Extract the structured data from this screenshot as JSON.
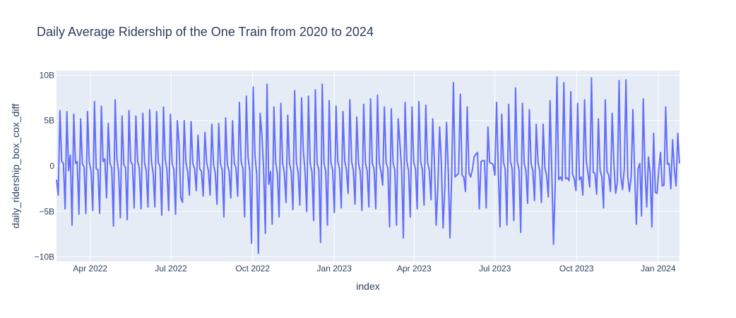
{
  "chart_data": {
    "type": "line",
    "title": "Daily Average Ridership of the One Train from 2020 to 2024",
    "xlabel": "index",
    "ylabel": "daily_ridership_box_cox_diff",
    "x_start": "2022-02-22",
    "x_end": "2024-01-25",
    "xlim": [
      "2022-02-22",
      "2024-01-25"
    ],
    "ylim": [
      -10500000000,
      10500000000
    ],
    "x_ticks": [
      {
        "label": "Apr 2022",
        "date": "2022-04-01"
      },
      {
        "label": "Jul 2022",
        "date": "2022-07-01"
      },
      {
        "label": "Oct 2022",
        "date": "2022-10-01"
      },
      {
        "label": "Jan 2023",
        "date": "2023-01-01"
      },
      {
        "label": "Apr 2023",
        "date": "2023-04-01"
      },
      {
        "label": "Jul 2023",
        "date": "2023-07-01"
      },
      {
        "label": "Oct 2023",
        "date": "2023-10-01"
      },
      {
        "label": "Jan 2024",
        "date": "2024-01-01"
      }
    ],
    "y_ticks": [
      {
        "label": "10B",
        "value": 10000000000
      },
      {
        "label": "5B",
        "value": 5000000000
      },
      {
        "label": "0",
        "value": 0
      },
      {
        "label": "−5B",
        "value": -5000000000
      },
      {
        "label": "−10B",
        "value": -10000000000
      }
    ],
    "grid": true,
    "colors": {
      "line": "#636efa",
      "plot_bg": "#e5ecf6",
      "grid": "#ffffff"
    },
    "series": [
      {
        "values": [
          -1.5,
          -3.2,
          6.1,
          0.5,
          0.3,
          -4.7,
          6.0,
          -0.5,
          1.2,
          -6.5,
          5.7,
          0.3,
          0.5,
          -5.3,
          5.2,
          0.2,
          -0.1,
          -5.2,
          6.0,
          0.4,
          -0.5,
          -4.9,
          7.1,
          -0.3,
          -0.4,
          -5.2,
          6.6,
          0.5,
          0.8,
          -3.5,
          4.7,
          0.3,
          -0.2,
          -6.6,
          7.3,
          0.8,
          -0.6,
          -5.7,
          5.5,
          0.2,
          -0.2,
          -5.9,
          6.1,
          0.5,
          0.2,
          -4.6,
          5.5,
          0.6,
          -0.3,
          -4.7,
          5.8,
          0.4,
          -0.5,
          -4.5,
          6.2,
          0.5,
          -0.8,
          -4.5,
          6.0,
          0.4,
          -0.1,
          -5.4,
          6.5,
          0.7,
          -0.4,
          -4.9,
          5.7,
          0.3,
          -0.4,
          -5.3,
          5.0,
          2.5,
          -3.5,
          -4.0,
          5.0,
          0.4,
          -0.6,
          -3.2,
          4.9,
          0.3,
          -0.3,
          -2.7,
          3.4,
          -0.3,
          -0.6,
          -3.3,
          3.7,
          0.4,
          -0.5,
          -3.2,
          4.6,
          0.2,
          -0.8,
          -4.2,
          4.7,
          0.3,
          -0.4,
          -5.6,
          5.3,
          0.2,
          -0.6,
          -3.5,
          5.0,
          0.3,
          -0.2,
          -3.3,
          7.0,
          0.5,
          -0.3,
          -5.6,
          7.7,
          1.0,
          -0.6,
          -8.5,
          8.7,
          1.2,
          -0.9,
          -9.6,
          5.8,
          3.5,
          -0.3,
          -7.4,
          9.0,
          -2.0,
          -0.6,
          -6.4,
          6.5,
          0.4,
          -0.8,
          -5.6,
          6.9,
          0.4,
          -0.7,
          -4.0,
          5.6,
          0.3,
          -0.6,
          -4.8,
          8.3,
          0.4,
          -0.7,
          -4.3,
          7.5,
          1.8,
          -0.6,
          -5.0,
          7.7,
          0.3,
          -0.6,
          -6.0,
          8.4,
          0.3,
          -0.4,
          -8.4,
          9.0,
          0.3,
          -0.6,
          -6.5,
          7.2,
          0.4,
          -0.4,
          -5.1,
          6.6,
          0.5,
          -0.3,
          -4.6,
          6.0,
          0.6,
          -0.4,
          -3.0,
          7.3,
          0.5,
          -0.5,
          -4.2,
          5.4,
          0.3,
          -0.6,
          -4.9,
          6.8,
          0.3,
          -0.5,
          -4.5,
          7.4,
          0.3,
          -0.3,
          -4.7,
          7.8,
          0.4,
          -0.6,
          -2.1,
          6.5,
          0.3,
          -0.2,
          -6.7,
          6.3,
          0.4,
          -0.4,
          -6.5,
          5.2,
          2.5,
          -0.5,
          -7.9,
          7.0,
          0.5,
          -0.5,
          -5.6,
          6.5,
          0.4,
          -0.3,
          -4.7,
          7.1,
          0.5,
          -0.4,
          -4.3,
          6.7,
          0.4,
          -0.4,
          -3.7,
          5.2,
          0.4,
          -6.5,
          -2.2,
          4.3,
          0.3,
          -6.8,
          -2.5,
          4.8,
          -0.5,
          -7.9,
          -1.0,
          9.2,
          -1.2,
          -1.0,
          -0.8,
          7.9,
          -1.0,
          -1.2,
          -2.8,
          6.5,
          -0.8,
          -1.2,
          -0.4,
          1.0,
          1.3,
          1.5,
          -4.7,
          0.5,
          0.6,
          0.6,
          -4.6,
          4.3,
          0.4,
          0.3,
          0.2,
          -1.0,
          7.0,
          -0.5,
          -6.7,
          5.7,
          0.5,
          -0.4,
          -6.5,
          6.8,
          0.6,
          -0.3,
          -6.0,
          8.6,
          0.5,
          -0.4,
          -7.3,
          6.9,
          0.3,
          -0.5,
          -4.1,
          6.2,
          0.3,
          -0.5,
          -3.8,
          4.6,
          0.4,
          -0.5,
          -4.0,
          4.6,
          -0.2,
          -1.0,
          -3.4,
          7.2,
          -0.7,
          -8.6,
          -2.0,
          9.8,
          -1.5,
          -1.2,
          -1.6,
          9.2,
          -1.4,
          -1.3,
          -1.6,
          8.2,
          -0.9,
          -1.4,
          -2.7,
          6.9,
          -1.5,
          -1.2,
          -3.2,
          7.3,
          0.5,
          -0.8,
          -2.3,
          9.7,
          -0.7,
          -0.8,
          -3.1,
          5.2,
          -0.5,
          -1.2,
          -4.6,
          7.3,
          -0.6,
          -1.0,
          -2.8,
          5.8,
          0.2,
          -3.0,
          -1.8,
          9.4,
          -1.1,
          -2.6,
          -0.3,
          9.5,
          -1.1,
          -2.8,
          -1.2,
          6.2,
          -0.6,
          -6.4,
          -0.3,
          0.3,
          -5.5,
          7.4,
          -0.3,
          -4.5,
          1.0,
          -0.8,
          -6.7,
          3.6,
          -2.9,
          -3.0,
          -0.4,
          1.5,
          -2.2,
          -2.1,
          6.5,
          0.2,
          0.3,
          -2.5,
          2.9,
          -0.3,
          -2.2,
          3.6,
          0.3
        ]
      }
    ]
  }
}
